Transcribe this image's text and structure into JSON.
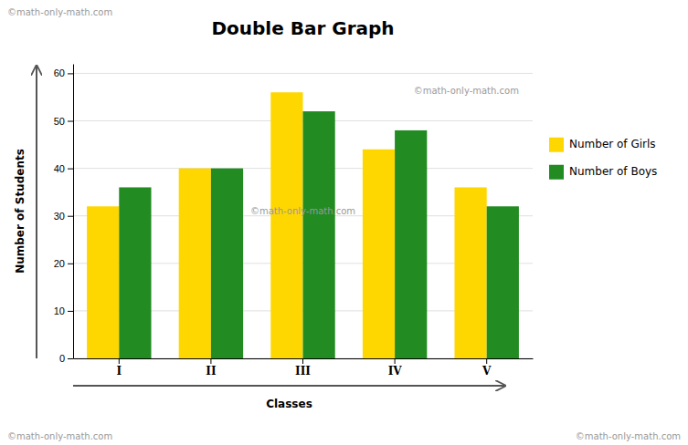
{
  "chart_data": {
    "type": "bar",
    "title": "Double Bar Graph",
    "x_label": "Classes",
    "y_label": "Number of Students",
    "categories": [
      "I",
      "II",
      "III",
      "IV",
      "V"
    ],
    "series": [
      {
        "name": "Number of Girls",
        "color": "#FFD700",
        "values": [
          32,
          40,
          56,
          44,
          36
        ]
      },
      {
        "name": "Number of Boys",
        "color": "#228B22",
        "values": [
          36,
          40,
          52,
          48,
          32
        ]
      }
    ],
    "ylim": [
      0,
      62
    ],
    "yticks": [
      0,
      10,
      20,
      30,
      40,
      50,
      60
    ],
    "grid": true,
    "legend": "right",
    "annotations": [
      "©math-only-math.com",
      "©math-only-math.com",
      "©math-only-math.com",
      "©math-only-math.com",
      "©math-only-math.com"
    ]
  }
}
